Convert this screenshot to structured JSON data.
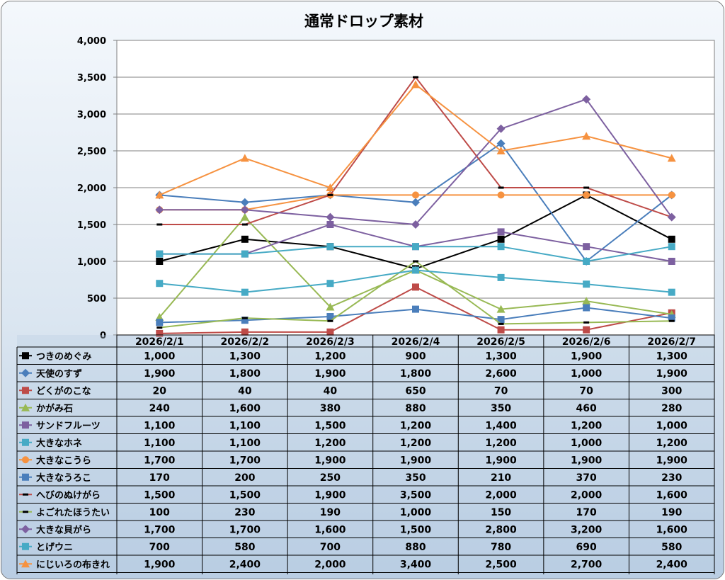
{
  "chart_data": {
    "type": "line",
    "title": "通常ドロップ素材",
    "categories": [
      "2026/2/1",
      "2026/2/2",
      "2026/2/3",
      "2026/2/4",
      "2026/2/5",
      "2026/2/6",
      "2026/2/7"
    ],
    "ylim": [
      0,
      4000
    ],
    "yticks": [
      "0",
      "500",
      "1,000",
      "1,500",
      "2,000",
      "2,500",
      "3,000",
      "3,500",
      "4,000"
    ],
    "legend": "data-table",
    "series": [
      {
        "name": "つきのめぐみ",
        "color": "#000000",
        "marker": "square",
        "values": [
          1000,
          1300,
          1200,
          900,
          1300,
          1900,
          1300
        ],
        "labels": [
          "1,000",
          "1,300",
          "1,200",
          "900",
          "1,300",
          "1,900",
          "1,300"
        ]
      },
      {
        "name": "天使のすず",
        "color": "#4a7ebb",
        "marker": "diamond",
        "values": [
          1900,
          1800,
          1900,
          1800,
          2600,
          1000,
          1900
        ],
        "labels": [
          "1,900",
          "1,800",
          "1,900",
          "1,800",
          "2,600",
          "1,000",
          "1,900"
        ]
      },
      {
        "name": "どくがのこな",
        "color": "#be4b48",
        "marker": "square",
        "values": [
          20,
          40,
          40,
          650,
          70,
          70,
          300
        ],
        "labels": [
          "20",
          "40",
          "40",
          "650",
          "70",
          "70",
          "300"
        ]
      },
      {
        "name": "かがみ石",
        "color": "#98b954",
        "marker": "triangle",
        "values": [
          240,
          1600,
          380,
          880,
          350,
          460,
          280
        ],
        "labels": [
          "240",
          "1,600",
          "380",
          "880",
          "350",
          "460",
          "280"
        ]
      },
      {
        "name": "サンドフルーツ",
        "color": "#7d60a0",
        "marker": "square",
        "values": [
          1100,
          1100,
          1500,
          1200,
          1400,
          1200,
          1000
        ],
        "labels": [
          "1,100",
          "1,100",
          "1,500",
          "1,200",
          "1,400",
          "1,200",
          "1,000"
        ]
      },
      {
        "name": "大きなホネ",
        "color": "#46aac5",
        "marker": "square",
        "values": [
          1100,
          1100,
          1200,
          1200,
          1200,
          1000,
          1200
        ],
        "labels": [
          "1,100",
          "1,100",
          "1,200",
          "1,200",
          "1,200",
          "1,000",
          "1,200"
        ]
      },
      {
        "name": "大きなこうら",
        "color": "#f69240",
        "marker": "circle",
        "values": [
          1700,
          1700,
          1900,
          1900,
          1900,
          1900,
          1900
        ],
        "labels": [
          "1,700",
          "1,700",
          "1,900",
          "1,900",
          "1,900",
          "1,900",
          "1,900"
        ]
      },
      {
        "name": "大きなうろこ",
        "color": "#4a7ebb",
        "marker": "square",
        "values": [
          170,
          200,
          250,
          350,
          210,
          370,
          230
        ],
        "labels": [
          "170",
          "200",
          "250",
          "350",
          "210",
          "370",
          "230"
        ]
      },
      {
        "name": "へびのぬけがら",
        "color": "#be4b48",
        "marker": "dash",
        "values": [
          1500,
          1500,
          1900,
          3500,
          2000,
          2000,
          1600
        ],
        "labels": [
          "1,500",
          "1,500",
          "1,900",
          "3,500",
          "2,000",
          "2,000",
          "1,600"
        ]
      },
      {
        "name": "よごれたほうたい",
        "color": "#98b954",
        "marker": "dash",
        "values": [
          100,
          230,
          190,
          1000,
          150,
          170,
          190
        ],
        "labels": [
          "100",
          "230",
          "190",
          "1,000",
          "150",
          "170",
          "190"
        ]
      },
      {
        "name": "大きな貝がら",
        "color": "#7d60a0",
        "marker": "diamond",
        "values": [
          1700,
          1700,
          1600,
          1500,
          2800,
          3200,
          1600
        ],
        "labels": [
          "1,700",
          "1,700",
          "1,600",
          "1,500",
          "2,800",
          "3,200",
          "1,600"
        ]
      },
      {
        "name": "とげウニ",
        "color": "#46aac5",
        "marker": "square",
        "values": [
          700,
          580,
          700,
          880,
          780,
          690,
          580
        ],
        "labels": [
          "700",
          "580",
          "700",
          "880",
          "780",
          "690",
          "580"
        ]
      },
      {
        "name": "にじいろの布きれ",
        "color": "#f69240",
        "marker": "triangle",
        "values": [
          1900,
          2400,
          2000,
          3400,
          2500,
          2700,
          2400
        ],
        "labels": [
          "1,900",
          "2,400",
          "2,000",
          "3,400",
          "2,500",
          "2,700",
          "2,400"
        ]
      }
    ]
  }
}
